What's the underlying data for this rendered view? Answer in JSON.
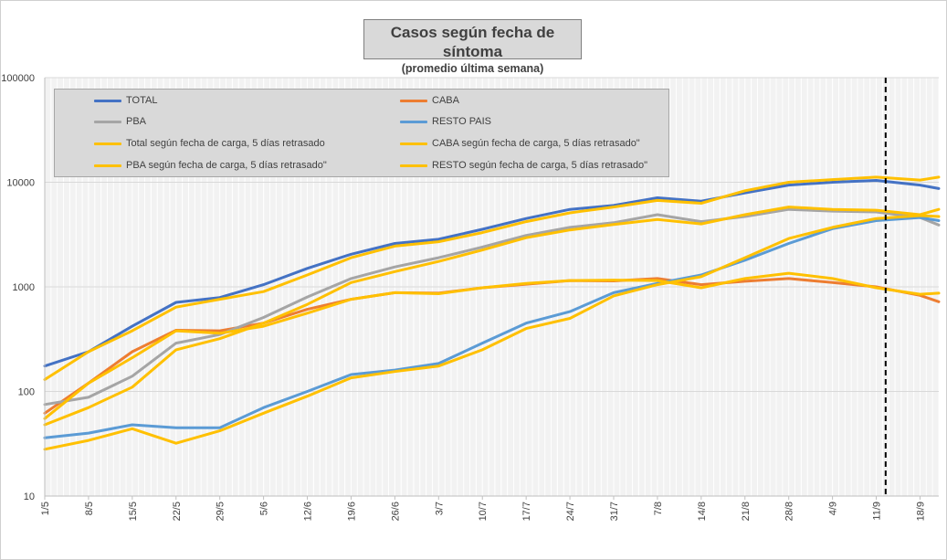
{
  "chart_data": {
    "type": "line",
    "title": "Casos según fecha de síntoma",
    "subtitle": "(promedio última semana)",
    "y_scale": "log",
    "ylim": [
      10,
      100000
    ],
    "y_ticks": [
      "10",
      "100",
      "1000",
      "10000",
      "100000"
    ],
    "x_tick_labels": [
      "1/5",
      "8/5",
      "15/5",
      "22/5",
      "29/5",
      "5/6",
      "12/6",
      "19/6",
      "26/6",
      "3/7",
      "10/7",
      "17/7",
      "24/7",
      "31/7",
      "7/8",
      "14/8",
      "21/8",
      "28/8",
      "4/9",
      "11/9",
      "18/9"
    ],
    "annotation_line": "11/9",
    "grid": true,
    "legend_position": "top-left",
    "series": [
      {
        "name": "TOTAL",
        "color": "#4472c4",
        "points": [
          [
            "1/5",
            175
          ],
          [
            "8/5",
            240
          ],
          [
            "15/5",
            420
          ],
          [
            "22/5",
            710
          ],
          [
            "29/5",
            790
          ],
          [
            "5/6",
            1050
          ],
          [
            "12/6",
            1500
          ],
          [
            "19/6",
            2050
          ],
          [
            "26/6",
            2600
          ],
          [
            "3/7",
            2850
          ],
          [
            "10/7",
            3550
          ],
          [
            "17/7",
            4500
          ],
          [
            "24/7",
            5500
          ],
          [
            "31/7",
            6000
          ],
          [
            "7/8",
            7100
          ],
          [
            "14/8",
            6600
          ],
          [
            "21/8",
            7900
          ],
          [
            "28/8",
            9400
          ],
          [
            "4/9",
            10000
          ],
          [
            "11/9",
            10400
          ],
          [
            "18/9",
            9400
          ],
          [
            "21/9",
            8700
          ]
        ]
      },
      {
        "name": "CABA",
        "color": "#ed7d31",
        "points": [
          [
            "1/5",
            62
          ],
          [
            "8/5",
            120
          ],
          [
            "15/5",
            240
          ],
          [
            "22/5",
            385
          ],
          [
            "29/5",
            380
          ],
          [
            "5/6",
            450
          ],
          [
            "12/6",
            610
          ],
          [
            "19/6",
            760
          ],
          [
            "26/6",
            880
          ],
          [
            "3/7",
            870
          ],
          [
            "10/7",
            980
          ],
          [
            "17/7",
            1060
          ],
          [
            "24/7",
            1150
          ],
          [
            "31/7",
            1140
          ],
          [
            "7/8",
            1200
          ],
          [
            "14/8",
            1050
          ],
          [
            "21/8",
            1130
          ],
          [
            "28/8",
            1200
          ],
          [
            "4/9",
            1100
          ],
          [
            "11/9",
            1000
          ],
          [
            "18/9",
            830
          ],
          [
            "21/9",
            720
          ]
        ]
      },
      {
        "name": "PBA",
        "color": "#a5a5a5",
        "points": [
          [
            "1/5",
            75
          ],
          [
            "8/5",
            88
          ],
          [
            "15/5",
            140
          ],
          [
            "22/5",
            290
          ],
          [
            "29/5",
            350
          ],
          [
            "5/6",
            510
          ],
          [
            "12/6",
            800
          ],
          [
            "19/6",
            1200
          ],
          [
            "26/6",
            1550
          ],
          [
            "3/7",
            1900
          ],
          [
            "10/7",
            2400
          ],
          [
            "17/7",
            3100
          ],
          [
            "24/7",
            3700
          ],
          [
            "31/7",
            4100
          ],
          [
            "7/8",
            4900
          ],
          [
            "14/8",
            4200
          ],
          [
            "21/8",
            4700
          ],
          [
            "28/8",
            5500
          ],
          [
            "4/9",
            5300
          ],
          [
            "11/9",
            5200
          ],
          [
            "18/9",
            4600
          ],
          [
            "21/9",
            3900
          ]
        ]
      },
      {
        "name": "RESTO PAIS",
        "color": "#5b9bd5",
        "points": [
          [
            "1/5",
            36
          ],
          [
            "8/5",
            40
          ],
          [
            "15/5",
            48
          ],
          [
            "22/5",
            45
          ],
          [
            "29/5",
            45
          ],
          [
            "5/6",
            70
          ],
          [
            "12/6",
            100
          ],
          [
            "19/6",
            145
          ],
          [
            "26/6",
            160
          ],
          [
            "3/7",
            185
          ],
          [
            "10/7",
            290
          ],
          [
            "17/7",
            450
          ],
          [
            "24/7",
            580
          ],
          [
            "31/7",
            880
          ],
          [
            "7/8",
            1080
          ],
          [
            "14/8",
            1300
          ],
          [
            "21/8",
            1800
          ],
          [
            "28/8",
            2600
          ],
          [
            "4/9",
            3600
          ],
          [
            "11/9",
            4300
          ],
          [
            "18/9",
            4600
          ],
          [
            "21/9",
            4300
          ]
        ]
      },
      {
        "name": "Total según fecha de carga, 5 días retrasado",
        "color": "#ffc000",
        "points": [
          [
            "1/5",
            130
          ],
          [
            "8/5",
            240
          ],
          [
            "15/5",
            380
          ],
          [
            "22/5",
            640
          ],
          [
            "29/5",
            760
          ],
          [
            "5/6",
            900
          ],
          [
            "12/6",
            1300
          ],
          [
            "19/6",
            1900
          ],
          [
            "26/6",
            2450
          ],
          [
            "3/7",
            2700
          ],
          [
            "10/7",
            3300
          ],
          [
            "17/7",
            4200
          ],
          [
            "24/7",
            5100
          ],
          [
            "31/7",
            5800
          ],
          [
            "7/8",
            6700
          ],
          [
            "14/8",
            6300
          ],
          [
            "21/8",
            8300
          ],
          [
            "28/8",
            10000
          ],
          [
            "4/9",
            10600
          ],
          [
            "11/9",
            11200
          ],
          [
            "18/9",
            10500
          ],
          [
            "21/9",
            11200
          ]
        ]
      },
      {
        "name": "CABA según fecha de carga, 5 días retrasado\"",
        "color": "#ffc000",
        "points": [
          [
            "1/5",
            55
          ],
          [
            "8/5",
            120
          ],
          [
            "15/5",
            210
          ],
          [
            "22/5",
            380
          ],
          [
            "29/5",
            360
          ],
          [
            "5/6",
            420
          ],
          [
            "12/6",
            560
          ],
          [
            "19/6",
            760
          ],
          [
            "26/6",
            880
          ],
          [
            "3/7",
            860
          ],
          [
            "10/7",
            980
          ],
          [
            "17/7",
            1080
          ],
          [
            "24/7",
            1150
          ],
          [
            "31/7",
            1160
          ],
          [
            "7/8",
            1150
          ],
          [
            "14/8",
            980
          ],
          [
            "21/8",
            1200
          ],
          [
            "28/8",
            1350
          ],
          [
            "4/9",
            1200
          ],
          [
            "11/9",
            980
          ],
          [
            "18/9",
            850
          ],
          [
            "21/9",
            870
          ]
        ]
      },
      {
        "name": "PBA según fecha de carga, 5 días retrasado\"",
        "color": "#ffc000",
        "points": [
          [
            "1/5",
            48
          ],
          [
            "8/5",
            70
          ],
          [
            "15/5",
            110
          ],
          [
            "22/5",
            250
          ],
          [
            "29/5",
            320
          ],
          [
            "5/6",
            450
          ],
          [
            "12/6",
            680
          ],
          [
            "19/6",
            1100
          ],
          [
            "26/6",
            1400
          ],
          [
            "3/7",
            1750
          ],
          [
            "10/7",
            2250
          ],
          [
            "17/7",
            2950
          ],
          [
            "24/7",
            3500
          ],
          [
            "31/7",
            3950
          ],
          [
            "7/8",
            4400
          ],
          [
            "14/8",
            4000
          ],
          [
            "21/8",
            4900
          ],
          [
            "28/8",
            5800
          ],
          [
            "4/9",
            5500
          ],
          [
            "11/9",
            5400
          ],
          [
            "18/9",
            4900
          ],
          [
            "21/9",
            5500
          ]
        ]
      },
      {
        "name": "RESTO según fecha de carga, 5 días retrasado\"",
        "color": "#ffc000",
        "points": [
          [
            "1/5",
            28
          ],
          [
            "8/5",
            34
          ],
          [
            "15/5",
            44
          ],
          [
            "22/5",
            32
          ],
          [
            "29/5",
            42
          ],
          [
            "5/6",
            62
          ],
          [
            "12/6",
            90
          ],
          [
            "19/6",
            135
          ],
          [
            "26/6",
            155
          ],
          [
            "3/7",
            175
          ],
          [
            "10/7",
            250
          ],
          [
            "17/7",
            400
          ],
          [
            "24/7",
            500
          ],
          [
            "31/7",
            820
          ],
          [
            "7/8",
            1050
          ],
          [
            "14/8",
            1250
          ],
          [
            "21/8",
            1900
          ],
          [
            "28/8",
            2900
          ],
          [
            "4/9",
            3700
          ],
          [
            "11/9",
            4500
          ],
          [
            "18/9",
            4800
          ],
          [
            "21/9",
            4700
          ]
        ]
      }
    ]
  }
}
